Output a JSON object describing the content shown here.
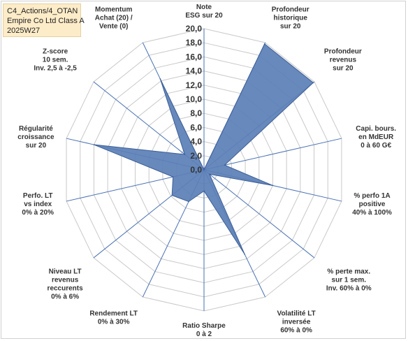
{
  "header": {
    "lines": [
      "C4_Actions/4_OTAN",
      "Empire Co Ltd Class A",
      "2025W27"
    ]
  },
  "colors": {
    "fill": "#5b7fb6",
    "stroke": "#3b5e97",
    "grid": "#c9c9c9",
    "spoke": "#4a72b5",
    "title_bg": "#fdecc8"
  },
  "chart_data": {
    "type": "radar",
    "title": "",
    "rlim": [
      0,
      20
    ],
    "tick_step": 2,
    "tick_labels": [
      "0,0",
      "2,0",
      "4,0",
      "6,0",
      "8,0",
      "10,0",
      "12,0",
      "14,0",
      "16,0",
      "18,0",
      "20,0"
    ],
    "grid": true,
    "axes": [
      [
        "Note",
        "ESG sur 20"
      ],
      [
        "Profondeur",
        "historique",
        "sur 20"
      ],
      [
        "Profondeur",
        "revenus",
        "sur 20"
      ],
      [
        "Capi. bours.",
        "en MdEUR",
        "0 à 60 G€"
      ],
      [
        "% perfo 1A",
        "positive",
        "40% à 100%"
      ],
      [
        "% perte max.",
        "sur 1 sem.",
        "Inv. 60% à 0%"
      ],
      [
        "Volatilité LT",
        "inversée",
        "60% à 0%"
      ],
      [
        "Ratio Sharpe",
        "0 à 2"
      ],
      [
        "Rendement LT",
        "0% à 30%"
      ],
      [
        "Niveau LT",
        "revenus",
        "reccurents",
        "0% à 6%"
      ],
      [
        "Perfo. LT",
        "vs index",
        "0% à 20%"
      ],
      [
        "Régularité",
        "croissance",
        "sur 20"
      ],
      [
        "Z-score",
        "10 sem.",
        "Inv. 2,5 à -2,5"
      ],
      [
        "Momentum",
        "Achat (20) /",
        "Vente (0)"
      ]
    ],
    "series": [
      {
        "values": [
          0.0,
          19.8,
          19.8,
          3.0,
          10.0,
          1.0,
          13.3,
          3.0,
          5.0,
          5.8,
          4.5,
          16.0,
          3.5,
          14.3
        ]
      }
    ]
  }
}
